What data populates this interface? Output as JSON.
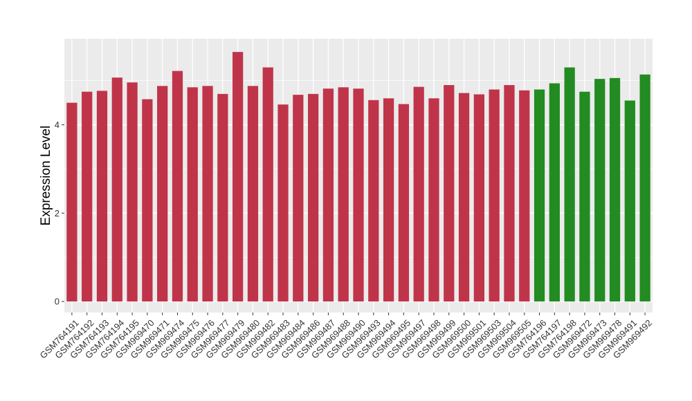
{
  "chart_data": {
    "type": "bar",
    "title": "",
    "xlabel": "",
    "ylabel": "Expression Level",
    "ylim": [
      -0.25,
      5.95
    ],
    "yticks": [
      0,
      2,
      4
    ],
    "grid": true,
    "legend": "none",
    "colors": {
      "panel_bg": "#EBEBEB",
      "grid": "#FFFFFF",
      "group_red": "#C0344A",
      "group_green": "#228B22"
    },
    "categories": [
      "GSM764191",
      "GSM764192",
      "GSM764193",
      "GSM764194",
      "GSM764195",
      "GSM969470",
      "GSM969471",
      "GSM969474",
      "GSM969475",
      "GSM969476",
      "GSM969477",
      "GSM969479",
      "GSM969480",
      "GSM969482",
      "GSM969483",
      "GSM969484",
      "GSM969486",
      "GSM969487",
      "GSM969488",
      "GSM969490",
      "GSM969493",
      "GSM969494",
      "GSM969495",
      "GSM969497",
      "GSM969498",
      "GSM969499",
      "GSM969500",
      "GSM969501",
      "GSM969503",
      "GSM969504",
      "GSM969505",
      "GSM764196",
      "GSM764197",
      "GSM764198",
      "GSM969472",
      "GSM969473",
      "GSM969478",
      "GSM969491",
      "GSM969492"
    ],
    "values": [
      4.5,
      4.75,
      4.77,
      5.07,
      4.96,
      4.58,
      4.88,
      5.22,
      4.85,
      4.88,
      4.7,
      5.65,
      4.88,
      5.3,
      4.46,
      4.68,
      4.7,
      4.82,
      4.85,
      4.82,
      4.56,
      4.6,
      4.47,
      4.86,
      4.6,
      4.9,
      4.72,
      4.69,
      4.8,
      4.9,
      4.78,
      4.8,
      4.94,
      5.3,
      4.75,
      5.04,
      5.06,
      4.55,
      5.14
    ],
    "groups": [
      "red",
      "red",
      "red",
      "red",
      "red",
      "red",
      "red",
      "red",
      "red",
      "red",
      "red",
      "red",
      "red",
      "red",
      "red",
      "red",
      "red",
      "red",
      "red",
      "red",
      "red",
      "red",
      "red",
      "red",
      "red",
      "red",
      "red",
      "red",
      "red",
      "red",
      "red",
      "green",
      "green",
      "green",
      "green",
      "green",
      "green",
      "green",
      "green"
    ]
  }
}
